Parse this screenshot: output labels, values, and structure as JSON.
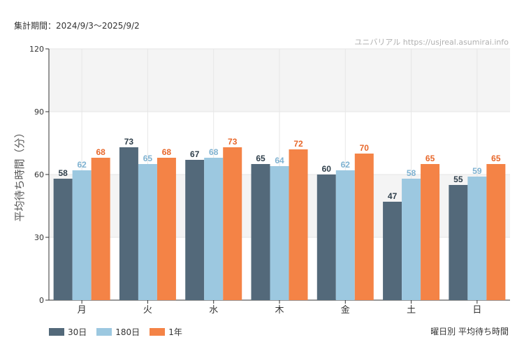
{
  "header": {
    "period": "集計期間：2024/9/3～2025/9/2",
    "credit": "ユニバリアル  https://usjreal.asumirai.info"
  },
  "chart_data": {
    "type": "bar",
    "subtitle": "曜日別 平均待ち時間",
    "ylabel": "平均待ち時間（分）",
    "xlabel": "",
    "ylim": [
      0,
      120
    ],
    "yticks": [
      0,
      30,
      60,
      90,
      120
    ],
    "grid": true,
    "legend_position": "bottom-left",
    "categories": [
      "月",
      "火",
      "水",
      "木",
      "金",
      "土",
      "日"
    ],
    "series": [
      {
        "name": "30日",
        "color": "#53697a",
        "label_color": "#2e3e4a",
        "values": [
          58,
          73,
          67,
          65,
          60,
          47,
          55
        ]
      },
      {
        "name": "180日",
        "color": "#9cc8e0",
        "label_color": "#7fb2d1",
        "values": [
          62,
          65,
          68,
          64,
          62,
          58,
          59
        ]
      },
      {
        "name": "1年",
        "color": "#f48346",
        "label_color": "#e8672a",
        "values": [
          68,
          68,
          73,
          72,
          70,
          65,
          65
        ]
      }
    ]
  }
}
